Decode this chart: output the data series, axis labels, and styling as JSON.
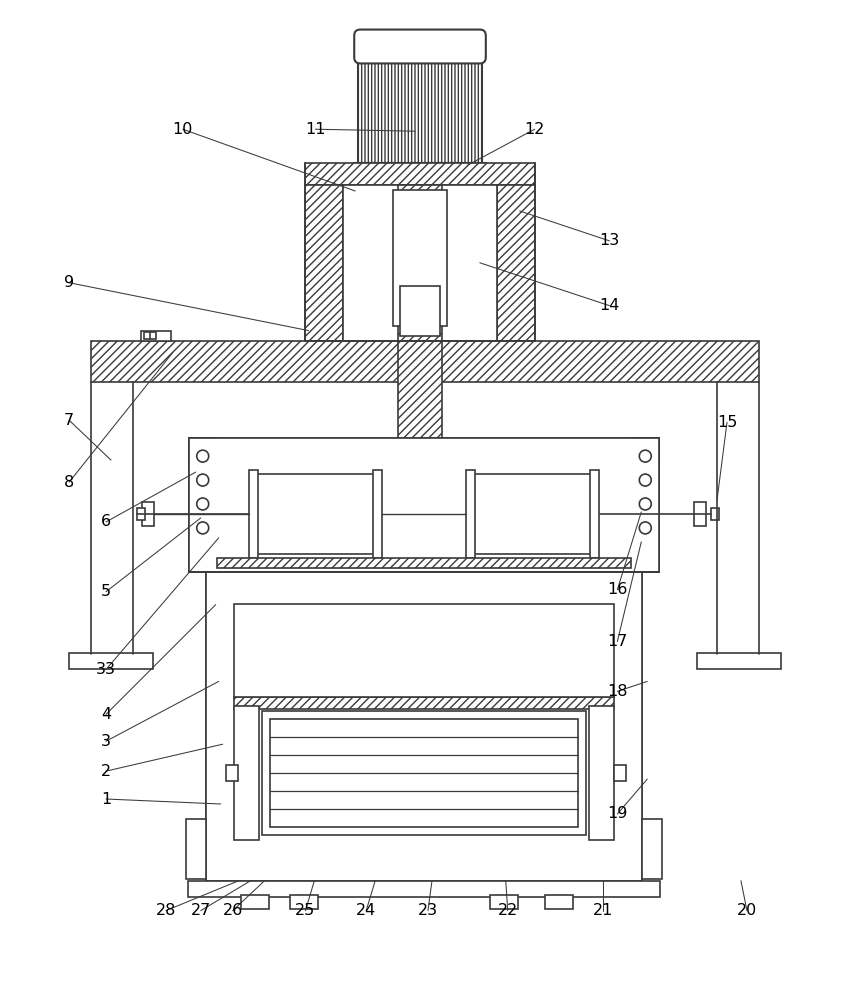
{
  "bg_color": "#ffffff",
  "line_color": "#3a3a3a",
  "label_color": "#000000",
  "fig_width": 8.49,
  "fig_height": 10.0,
  "leaders": [
    [
      "10",
      355,
      810,
      182,
      872
    ],
    [
      "11",
      415,
      870,
      315,
      872
    ],
    [
      "12",
      468,
      836,
      535,
      872
    ],
    [
      "13",
      520,
      790,
      610,
      760
    ],
    [
      "14",
      480,
      738,
      610,
      695
    ],
    [
      "9",
      308,
      670,
      68,
      718
    ],
    [
      "8",
      172,
      648,
      68,
      518
    ],
    [
      "7",
      110,
      540,
      68,
      580
    ],
    [
      "15",
      718,
      500,
      728,
      578
    ],
    [
      "6",
      195,
      528,
      105,
      478
    ],
    [
      "5",
      200,
      482,
      105,
      408
    ],
    [
      "16",
      642,
      488,
      618,
      410
    ],
    [
      "33",
      218,
      462,
      105,
      330
    ],
    [
      "17",
      642,
      458,
      618,
      358
    ],
    [
      "4",
      215,
      395,
      105,
      285
    ],
    [
      "18",
      648,
      318,
      618,
      308
    ],
    [
      "3",
      218,
      318,
      105,
      258
    ],
    [
      "2",
      222,
      255,
      105,
      228
    ],
    [
      "1",
      220,
      195,
      105,
      200
    ],
    [
      "19",
      648,
      220,
      618,
      185
    ],
    [
      "20",
      742,
      118,
      748,
      88
    ],
    [
      "21",
      604,
      118,
      604,
      88
    ],
    [
      "22",
      506,
      118,
      508,
      88
    ],
    [
      "23",
      432,
      118,
      428,
      88
    ],
    [
      "24",
      375,
      118,
      366,
      88
    ],
    [
      "25",
      314,
      118,
      305,
      88
    ],
    [
      "26",
      264,
      118,
      232,
      88
    ],
    [
      "27",
      250,
      118,
      200,
      88
    ],
    [
      "28",
      238,
      118,
      165,
      88
    ]
  ]
}
